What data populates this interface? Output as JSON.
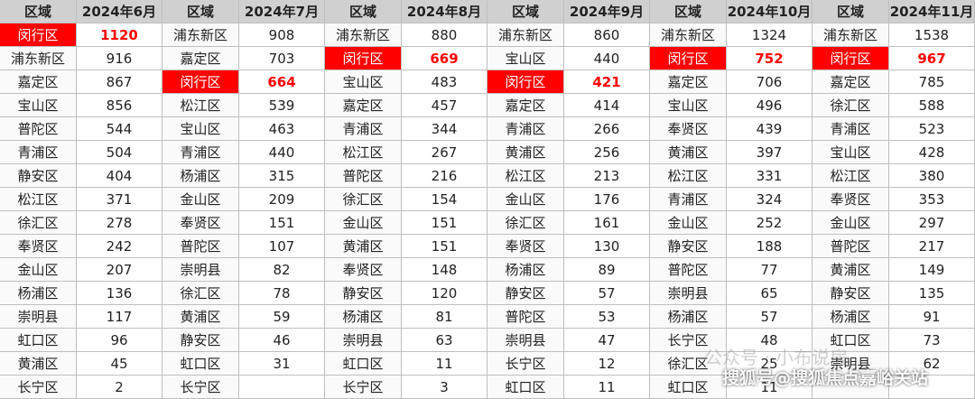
{
  "table": {
    "columns": [
      {
        "header_region": "区域",
        "header_month": "2024年6月",
        "highlight": "闵行区",
        "rows": [
          [
            "闵行区",
            1120
          ],
          [
            "浦东新区",
            916
          ],
          [
            "嘉定区",
            867
          ],
          [
            "宝山区",
            856
          ],
          [
            "普陀区",
            544
          ],
          [
            "青浦区",
            504
          ],
          [
            "静安区",
            404
          ],
          [
            "松江区",
            371
          ],
          [
            "徐汇区",
            278
          ],
          [
            "奉贤区",
            242
          ],
          [
            "金山区",
            207
          ],
          [
            "杨浦区",
            136
          ],
          [
            "崇明县",
            117
          ],
          [
            "虹口区",
            96
          ],
          [
            "黄浦区",
            45
          ],
          [
            "长宁区",
            2
          ]
        ]
      },
      {
        "header_region": "区域",
        "header_month": "2024年7月",
        "highlight": "闵行区",
        "rows": [
          [
            "浦东新区",
            908
          ],
          [
            "嘉定区",
            703
          ],
          [
            "闵行区",
            664
          ],
          [
            "松江区",
            539
          ],
          [
            "宝山区",
            463
          ],
          [
            "青浦区",
            440
          ],
          [
            "杨浦区",
            315
          ],
          [
            "金山区",
            209
          ],
          [
            "奉贤区",
            151
          ],
          [
            "普陀区",
            107
          ],
          [
            "崇明县",
            82
          ],
          [
            "徐汇区",
            78
          ],
          [
            "黄浦区",
            59
          ],
          [
            "静安区",
            46
          ],
          [
            "虹口区",
            31
          ],
          [
            "长宁区",
            null
          ]
        ]
      },
      {
        "header_region": "区域",
        "header_month": "2024年8月",
        "highlight": "闵行区",
        "rows": [
          [
            "浦东新区",
            880
          ],
          [
            "闵行区",
            669
          ],
          [
            "宝山区",
            483
          ],
          [
            "嘉定区",
            457
          ],
          [
            "青浦区",
            344
          ],
          [
            "松江区",
            267
          ],
          [
            "普陀区",
            216
          ],
          [
            "徐汇区",
            154
          ],
          [
            "金山区",
            151
          ],
          [
            "黄浦区",
            151
          ],
          [
            "奉贤区",
            148
          ],
          [
            "静安区",
            120
          ],
          [
            "杨浦区",
            81
          ],
          [
            "崇明县",
            63
          ],
          [
            "虹口区",
            11
          ],
          [
            "长宁区",
            3
          ]
        ]
      },
      {
        "header_region": "区域",
        "header_month": "2024年9月",
        "highlight": "闵行区",
        "rows": [
          [
            "浦东新区",
            860
          ],
          [
            "宝山区",
            440
          ],
          [
            "闵行区",
            421
          ],
          [
            "嘉定区",
            414
          ],
          [
            "青浦区",
            266
          ],
          [
            "黄浦区",
            256
          ],
          [
            "松江区",
            213
          ],
          [
            "金山区",
            176
          ],
          [
            "徐汇区",
            161
          ],
          [
            "奉贤区",
            130
          ],
          [
            "杨浦区",
            89
          ],
          [
            "静安区",
            57
          ],
          [
            "普陀区",
            53
          ],
          [
            "崇明县",
            47
          ],
          [
            "长宁区",
            12
          ],
          [
            "虹口区",
            11
          ]
        ]
      },
      {
        "header_region": "区域",
        "header_month": "2024年10月",
        "highlight": "闵行区",
        "rows": [
          [
            "浦东新区",
            1324
          ],
          [
            "闵行区",
            752
          ],
          [
            "嘉定区",
            706
          ],
          [
            "宝山区",
            496
          ],
          [
            "奉贤区",
            439
          ],
          [
            "黄浦区",
            397
          ],
          [
            "松江区",
            331
          ],
          [
            "青浦区",
            324
          ],
          [
            "金山区",
            252
          ],
          [
            "静安区",
            188
          ],
          [
            "普陀区",
            77
          ],
          [
            "崇明县",
            65
          ],
          [
            "杨浦区",
            57
          ],
          [
            "长宁区",
            48
          ],
          [
            "徐汇区",
            25
          ],
          [
            "虹口区",
            11
          ]
        ]
      },
      {
        "header_region": "区域",
        "header_month": "2024年11月",
        "highlight": "闵行区",
        "rows": [
          [
            "浦东新区",
            1538
          ],
          [
            "闵行区",
            967
          ],
          [
            "嘉定区",
            785
          ],
          [
            "徐汇区",
            588
          ],
          [
            "青浦区",
            523
          ],
          [
            "宝山区",
            428
          ],
          [
            "松江区",
            380
          ],
          [
            "奉贤区",
            353
          ],
          [
            "金山区",
            297
          ],
          [
            "普陀区",
            217
          ],
          [
            "黄浦区",
            149
          ],
          [
            "静安区",
            135
          ],
          [
            "杨浦区",
            91
          ],
          [
            "虹口区",
            73
          ],
          [
            "崇明县",
            62
          ],
          [
            null,
            null
          ]
        ]
      }
    ]
  },
  "watermarks": [
    "公众号 · 小布说房",
    "搜狐号@搜狐焦点嘉峪关站"
  ]
}
